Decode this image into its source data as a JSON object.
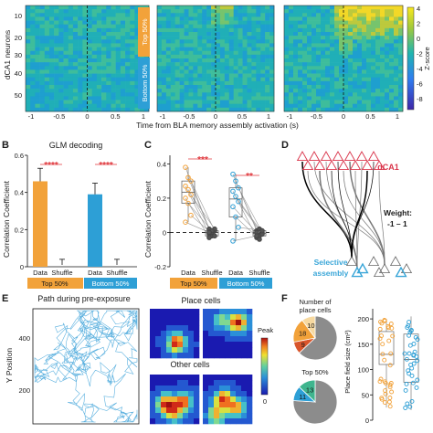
{
  "panelA": {
    "ylabel": "dCA1 neurons",
    "xlabel": "Time from BLA memory assembly activation (s)",
    "yticks": [
      "10",
      "20",
      "30",
      "40",
      "50"
    ],
    "xticks": [
      "-1",
      "-0.5",
      "0",
      "0.5",
      "1"
    ],
    "group_top": "Top 50%",
    "group_bottom": "Bottom 50%",
    "colorbar_label": "Z-score",
    "colorbar_ticks": [
      "4",
      "2",
      "0",
      "-2",
      "-4",
      "-6",
      "-8"
    ]
  },
  "panelB": {
    "letter": "B",
    "title": "GLM decoding",
    "ylabel": "Correlation Coefficient",
    "yticks": [
      "0",
      "0.2",
      "0.4",
      "0.6"
    ],
    "bar_labels": [
      "Data",
      "Shuffle",
      "Data",
      "Shuffle"
    ],
    "stars": [
      "****",
      "****"
    ],
    "group_top": "Top 50%",
    "group_bottom": "Bottom 50%"
  },
  "panelC": {
    "letter": "C",
    "ylabel": "Correlation Coefficient",
    "yticks": [
      "-0.2",
      "0",
      "0.2",
      "0.4"
    ],
    "bar_labels": [
      "Data",
      "Shuffle",
      "Data",
      "Shuffle"
    ],
    "stars": [
      "***",
      "**"
    ],
    "group_top": "Top 50%",
    "group_bottom": "Bottom 50%"
  },
  "panelD": {
    "letter": "D",
    "region": "dCA1",
    "weight_label": "Weight:",
    "weight_range": "-1 – 1",
    "assembly_label_1": "Selective",
    "assembly_label_2": "assembly"
  },
  "panelE": {
    "letter": "E",
    "title": "Path during pre-exposure",
    "ylabel": "Y Position",
    "yticks": [
      "400",
      "200"
    ],
    "place_cells": "Place cells",
    "other_cells": "Other cells",
    "colorbar_top": "Peak",
    "colorbar_bottom": "0"
  },
  "panelF": {
    "letter": "F",
    "legend_title_1": "Number of",
    "legend_title_2": "place cells",
    "pie_top_values": [
      "9",
      "18",
      "10"
    ],
    "group_label": "Top 50%",
    "pie_bottom_values": [
      "11",
      "13"
    ],
    "ylabel": "Place field size (cm²)",
    "yticks": [
      "200",
      "150",
      "100",
      "50",
      "0"
    ]
  },
  "chart_data": [
    {
      "type": "bar",
      "panel": "B",
      "title": "GLM decoding",
      "categories": [
        "Data",
        "Shuffle",
        "Data",
        "Shuffle"
      ],
      "groups": [
        "Top 50%",
        "Top 50%",
        "Bottom 50%",
        "Bottom 50%"
      ],
      "values": [
        0.46,
        0.01,
        0.39,
        0.01
      ],
      "errors": [
        0.07,
        0.03,
        0.06,
        0.03
      ],
      "ylim": [
        0,
        0.6
      ],
      "ylabel": "Correlation Coefficient",
      "colors": [
        "#f2a23a",
        "#f2a23a",
        "#2d9fd6",
        "#2d9fd6"
      ]
    },
    {
      "type": "scatter",
      "panel": "C",
      "categories": [
        "Data",
        "Shuffle",
        "Data",
        "Shuffle"
      ],
      "groups": [
        "Top 50%",
        "Top 50%",
        "Bottom 50%",
        "Bottom 50%"
      ],
      "ylim": [
        -0.2,
        0.45
      ],
      "ylabel": "Correlation Coefficient",
      "series": [
        {
          "values": [
            0.38,
            0.32,
            0.3,
            0.27,
            0.25,
            0.22,
            0.2,
            0.17,
            0.1,
            0.06
          ]
        },
        {
          "values": [
            0.02,
            -0.02,
            0.01,
            -0.01,
            0.0,
            0.02,
            -0.03,
            0.01,
            -0.02,
            0.0
          ]
        },
        {
          "values": [
            0.34,
            0.3,
            0.26,
            0.24,
            0.21,
            0.18,
            0.15,
            0.09,
            0.03,
            -0.05
          ]
        },
        {
          "values": [
            0.01,
            -0.02,
            0.0,
            -0.03,
            0.02,
            -0.01,
            0.0,
            -0.04,
            0.01,
            -0.02
          ]
        }
      ]
    },
    {
      "type": "pie",
      "panel": "F-top",
      "values": [
        63,
        9,
        18,
        10
      ],
      "labels": [
        "",
        "9",
        "18",
        "10"
      ],
      "colors": [
        "#8c8c8c",
        "#d9552b",
        "#f2a23a",
        "#f7d9a0"
      ]
    },
    {
      "type": "pie",
      "panel": "F-bottom",
      "values": [
        76,
        11,
        13
      ],
      "labels": [
        "",
        "11",
        "13"
      ],
      "colors": [
        "#8c8c8c",
        "#2d9fd6",
        "#3fb58e"
      ]
    },
    {
      "type": "scatter",
      "panel": "F-right",
      "ylabel": "Place field size (cm²)",
      "ylim": [
        0,
        220
      ],
      "series": [
        {
          "color": "#f2a23a",
          "median": 130,
          "q1": 110,
          "q3": 175,
          "min": 25,
          "max": 200
        },
        {
          "color": "#2d9fd6",
          "median": 120,
          "q1": 75,
          "q3": 170,
          "min": 20,
          "max": 205
        }
      ]
    }
  ]
}
